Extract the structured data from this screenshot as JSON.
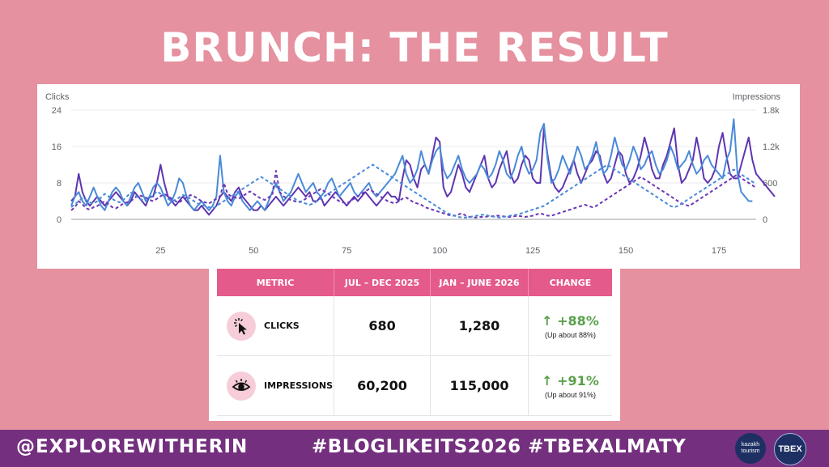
{
  "title": "BRUNCH: THE RESULT",
  "chart_data": {
    "type": "line",
    "y_left_label": "Clicks",
    "y_right_label": "Impressions",
    "xlim": [
      1,
      185
    ],
    "x_ticks": [
      25,
      50,
      75,
      100,
      125,
      150,
      175
    ],
    "y_left_ticks": [
      "0",
      "8",
      "16",
      "24"
    ],
    "y_left_range": [
      0,
      24
    ],
    "y_right_ticks": [
      "0",
      "600",
      "1.2k",
      "1.8k"
    ],
    "y_right_range": [
      0,
      1800
    ],
    "grid": true,
    "legend": "none",
    "x_start": 1,
    "series": [
      {
        "axis": "left",
        "style": "solid",
        "color": "#5e35b1",
        "values": [
          4,
          5,
          10,
          6,
          4,
          3,
          4,
          5,
          4,
          3,
          4,
          5,
          6,
          5,
          4,
          3,
          4,
          6,
          5,
          4,
          3,
          5,
          5,
          8,
          12,
          8,
          5,
          4,
          3,
          4,
          5,
          4,
          3,
          2,
          2,
          3,
          2,
          1,
          2,
          3,
          5,
          6,
          5,
          4,
          6,
          7,
          5,
          4,
          3,
          2,
          2,
          3,
          2,
          3,
          4,
          5,
          4,
          3,
          4,
          5,
          6,
          7,
          6,
          5,
          6,
          4,
          4,
          5,
          3,
          4,
          5,
          6,
          5,
          4,
          3,
          4,
          5,
          4,
          5,
          6,
          5,
          4,
          3,
          4,
          5,
          6,
          5,
          5,
          4,
          9,
          13,
          12,
          9,
          7,
          11,
          12,
          10,
          14,
          18,
          17,
          7,
          5,
          6,
          9,
          12,
          10,
          7,
          6,
          8,
          10,
          12,
          14,
          9,
          7,
          8,
          11,
          13,
          15,
          10,
          8,
          9,
          12,
          14,
          13,
          9,
          8,
          8,
          20,
          14,
          9,
          7,
          6,
          7,
          9,
          11,
          13,
          10,
          8,
          10,
          12,
          13,
          15,
          14,
          10,
          8,
          9,
          12,
          15,
          14,
          10,
          8,
          9,
          11,
          14,
          18,
          15,
          11,
          9,
          9,
          12,
          14,
          17,
          20,
          12,
          8,
          9,
          11,
          13,
          18,
          14,
          9,
          8,
          9,
          11,
          16,
          19,
          14,
          10,
          9,
          9,
          12,
          15,
          18,
          13,
          10,
          9,
          8,
          7,
          6,
          5
        ]
      },
      {
        "axis": "left",
        "style": "solid",
        "color": "#4a8ad8",
        "values": [
          3,
          5,
          6,
          4,
          3,
          5,
          7,
          5,
          3,
          2,
          4,
          6,
          7,
          6,
          4,
          3,
          5,
          7,
          8,
          6,
          4,
          5,
          7,
          8,
          7,
          5,
          3,
          4,
          6,
          9,
          8,
          5,
          3,
          2,
          3,
          4,
          3,
          2,
          3,
          5,
          14,
          6,
          4,
          3,
          5,
          6,
          4,
          3,
          2,
          3,
          4,
          3,
          2,
          4,
          6,
          8,
          6,
          4,
          5,
          6,
          8,
          10,
          8,
          6,
          7,
          8,
          6,
          5,
          6,
          8,
          9,
          7,
          5,
          6,
          7,
          8,
          6,
          5,
          6,
          7,
          8,
          6,
          5,
          6,
          7,
          8,
          9,
          10,
          12,
          14,
          10,
          8,
          9,
          11,
          15,
          12,
          10,
          13,
          15,
          16,
          11,
          9,
          10,
          12,
          14,
          11,
          9,
          8,
          9,
          10,
          12,
          11,
          9,
          10,
          12,
          15,
          13,
          10,
          9,
          11,
          14,
          16,
          12,
          10,
          11,
          13,
          19,
          21,
          13,
          8,
          9,
          11,
          14,
          12,
          10,
          13,
          16,
          14,
          11,
          12,
          14,
          17,
          13,
          10,
          11,
          14,
          18,
          15,
          12,
          11,
          13,
          16,
          14,
          11,
          12,
          14,
          15,
          12,
          10,
          11,
          13,
          16,
          14,
          11,
          12,
          13,
          15,
          12,
          10,
          11,
          13,
          14,
          12,
          11,
          10,
          9,
          13,
          15,
          22,
          10,
          6,
          5,
          4,
          4
        ]
      },
      {
        "axis": "right",
        "style": "dashed",
        "color": "#6a38b8",
        "values": [
          150,
          200,
          300,
          250,
          180,
          160,
          200,
          220,
          260,
          300,
          250,
          200,
          180,
          220,
          260,
          280,
          300,
          350,
          400,
          380,
          360,
          320,
          300,
          340,
          380,
          420,
          380,
          340,
          300,
          280,
          320,
          360,
          400,
          380,
          340,
          300,
          280,
          260,
          300,
          340,
          380,
          600,
          420,
          380,
          360,
          340,
          380,
          420,
          460,
          420,
          380,
          340,
          320,
          360,
          400,
          800,
          450,
          380,
          340,
          320,
          300,
          280,
          300,
          340,
          380,
          420,
          460,
          500,
          460,
          420,
          380,
          340,
          300,
          280,
          260,
          300,
          340,
          380,
          420,
          460,
          500,
          460,
          420,
          380,
          340,
          300,
          280,
          260,
          300,
          340,
          360,
          320,
          280,
          260,
          240,
          200,
          180,
          160,
          140,
          120,
          100,
          80,
          60,
          60,
          80,
          100,
          60,
          40,
          30,
          30,
          40,
          40,
          50,
          50,
          60,
          60,
          50,
          40,
          40,
          50,
          60,
          50,
          40,
          50,
          60,
          80,
          100,
          80,
          60,
          60,
          80,
          100,
          120,
          140,
          160,
          180,
          200,
          220,
          240,
          220,
          200,
          220,
          260,
          300,
          340,
          380,
          420,
          460,
          500,
          540,
          580,
          620,
          660,
          700,
          660,
          620,
          580,
          540,
          500,
          460,
          420,
          380,
          340,
          300,
          260,
          240,
          220,
          260,
          300,
          340,
          380,
          420,
          460,
          500,
          540,
          580,
          620,
          660,
          700,
          740,
          680,
          640,
          600,
          560,
          520
        ]
      },
      {
        "axis": "right",
        "style": "dashed",
        "color": "#4a8ad8",
        "values": [
          200,
          250,
          300,
          350,
          320,
          280,
          260,
          300,
          360,
          420,
          380,
          340,
          300,
          280,
          320,
          380,
          440,
          400,
          360,
          320,
          300,
          340,
          400,
          460,
          420,
          380,
          340,
          300,
          320,
          360,
          400,
          380,
          340,
          300,
          260,
          240,
          220,
          200,
          180,
          220,
          260,
          300,
          340,
          380,
          420,
          460,
          500,
          540,
          580,
          620,
          660,
          700,
          660,
          620,
          580,
          540,
          500,
          460,
          420,
          380,
          340,
          300,
          280,
          260,
          240,
          260,
          300,
          340,
          380,
          420,
          460,
          500,
          540,
          580,
          620,
          660,
          700,
          740,
          780,
          820,
          860,
          900,
          860,
          820,
          780,
          740,
          700,
          660,
          620,
          580,
          540,
          500,
          460,
          420,
          380,
          340,
          300,
          260,
          220,
          180,
          140,
          100,
          80,
          60,
          40,
          30,
          30,
          40,
          50,
          60,
          70,
          80,
          60,
          50,
          40,
          30,
          40,
          50,
          60,
          70,
          80,
          100,
          120,
          140,
          160,
          180,
          200,
          220,
          260,
          300,
          340,
          380,
          420,
          460,
          500,
          540,
          580,
          620,
          660,
          700,
          740,
          780,
          820,
          860,
          900,
          860,
          820,
          780,
          740,
          700,
          660,
          620,
          580,
          540,
          500,
          460,
          420,
          380,
          340,
          300,
          260,
          220,
          200,
          220,
          260,
          300,
          340,
          380,
          420,
          460,
          500,
          540,
          580,
          620,
          660,
          700,
          740,
          780,
          820,
          780,
          740,
          700,
          660,
          620,
          580
        ]
      }
    ]
  },
  "table": {
    "headers": [
      "METRIC",
      "JUL – DEC 2025",
      "JAN – JUNE 2026",
      "CHANGE"
    ],
    "rows": [
      {
        "label": "CLICKS",
        "icon": "cursor-click-icon",
        "col1": "680",
        "col2": "1,280",
        "change": "+88%",
        "change_sub": "(Up about 88%)"
      },
      {
        "label": "IMPRESSIONS",
        "icon": "eye-icon",
        "col1": "60,200",
        "col2": "115,000",
        "change": "+91%",
        "change_sub": "(Up about 91%)"
      }
    ]
  },
  "footer": {
    "handle": "@EXPLOREWITHERIN",
    "hashtags": "#BLOGLIKEITS2026 #TBEXALMATY",
    "logo_kazakh_line1": "kazakh",
    "logo_kazakh_line2": "tourism",
    "logo_tbex": "TBEX"
  },
  "colors": {
    "background": "#e5919f",
    "footer": "#74307f",
    "header_pink": "#e45a8a",
    "positive": "#5aa04a"
  }
}
